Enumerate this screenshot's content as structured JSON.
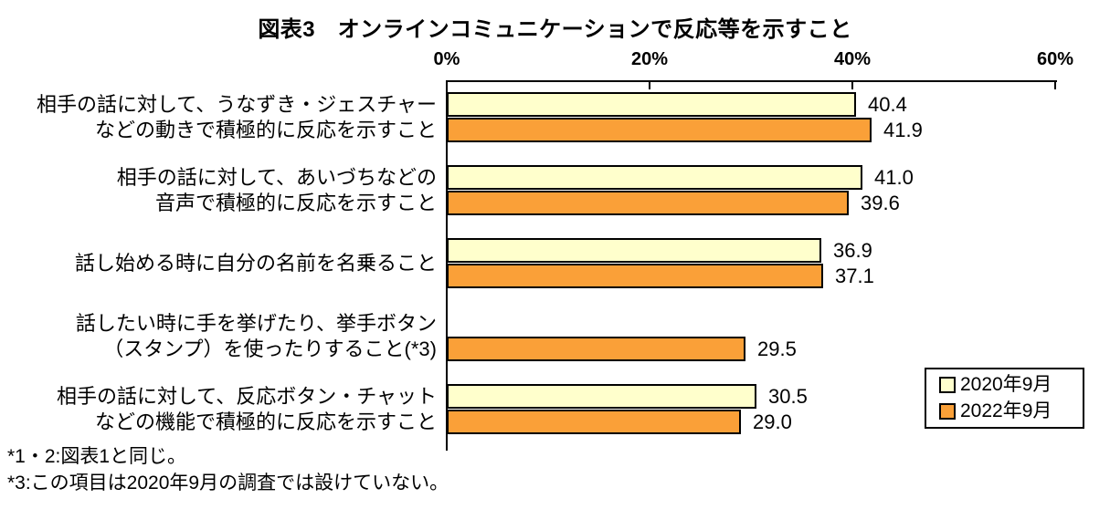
{
  "title": "図表3　オンラインコミュニケーションで反応等を示すこと",
  "chart_data": {
    "type": "bar",
    "orientation": "horizontal",
    "title": "図表3　オンラインコミュニケーションで反応等を示すこと",
    "x_axis": {
      "min": 0,
      "max": 60,
      "unit": "%",
      "tick_labels": [
        "0%",
        "20%",
        "40%",
        "60%"
      ],
      "tick_values": [
        0,
        20,
        40,
        60
      ]
    },
    "categories": [
      [
        "相手の話に対して、うなずき・ジェスチャー",
        "などの動きで積極的に反応を示すこと"
      ],
      [
        "相手の話に対して、あいづちなどの",
        "音声で積極的に反応を示すこと"
      ],
      [
        "話し始める時に自分の名前を名乗ること"
      ],
      [
        "話したい時に手を挙げたり、挙手ボタン",
        "（スタンプ）を使ったりすること(*3)"
      ],
      [
        "相手の話に対して、反応ボタン・チャット",
        "などの機能で積極的に反応を示すこと"
      ]
    ],
    "series": [
      {
        "name": "2020年9月",
        "color": "#FFFFCC",
        "values": [
          40.4,
          41.0,
          36.9,
          null,
          30.5
        ]
      },
      {
        "name": "2022年9月",
        "color": "#FAA038",
        "values": [
          41.9,
          39.6,
          37.1,
          29.5,
          29.0
        ]
      }
    ],
    "value_labels": true,
    "grid": false,
    "legend_position": "bottom-right"
  },
  "footnotes": [
    "*1・2:図表1と同じ。",
    "*3:この項目は2020年9月の調査では設けていない。"
  ]
}
